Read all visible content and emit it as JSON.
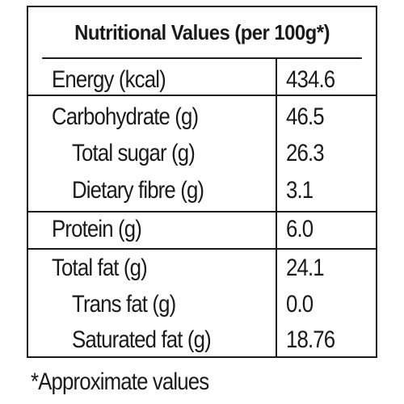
{
  "table": {
    "title": "Nutritional Values (per 100g*)",
    "rows": [
      {
        "label": "Energy (kcal)",
        "value": "434.6"
      },
      {
        "label": "Carbohydrate (g)",
        "value": "46.5"
      },
      {
        "label": "Total sugar (g)",
        "value": "26.3"
      },
      {
        "label": "Dietary fibre (g)",
        "value": "3.1"
      },
      {
        "label": "Protein (g)",
        "value": "6.0"
      },
      {
        "label": "Total fat (g)",
        "value": "24.1"
      },
      {
        "label": "Trans fat (g)",
        "value": "0.0"
      },
      {
        "label": "Saturated fat (g)",
        "value": "18.76"
      }
    ]
  },
  "footnote": "*Approximate values"
}
